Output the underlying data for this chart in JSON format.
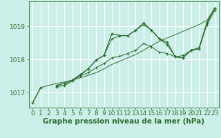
{
  "title": "Graphe pression niveau de la mer (hPa)",
  "bg_color": "#cceee8",
  "grid_color": "#aaddcc",
  "line_color": "#2d6e2d",
  "xlim": [
    -0.5,
    23.5
  ],
  "ylim": [
    1016.55,
    1019.75
  ],
  "yticks": [
    1017,
    1018,
    1019
  ],
  "xticks": [
    0,
    1,
    2,
    3,
    4,
    5,
    6,
    7,
    8,
    9,
    10,
    11,
    12,
    13,
    14,
    15,
    16,
    17,
    18,
    19,
    20,
    21,
    22,
    23
  ],
  "series": {
    "line1_no_marker": [
      1016.7,
      1017.15,
      1017.22,
      1017.28,
      1017.32,
      1017.38,
      1017.45,
      1017.52,
      1017.6,
      1017.72,
      1017.85,
      1017.95,
      1018.05,
      1018.15,
      1018.28,
      1018.42,
      1018.55,
      1018.65,
      1018.75,
      1018.85,
      1018.95,
      1019.05,
      1019.18,
      1019.55
    ],
    "line2_marker": [
      null,
      null,
      null,
      1017.22,
      1017.28,
      1017.38,
      1017.5,
      1017.6,
      1017.75,
      1017.88,
      1018.05,
      1018.1,
      1018.18,
      1018.28,
      1018.48,
      1018.38,
      1018.22,
      1018.18,
      1018.08,
      1018.12,
      1018.28,
      1018.32,
      1019.05,
      1019.48
    ],
    "line3_marker": [
      null,
      null,
      null,
      1017.22,
      1017.28,
      1017.38,
      1017.55,
      1017.72,
      1017.98,
      1018.12,
      1018.62,
      1018.72,
      1018.72,
      1018.88,
      1019.05,
      1018.88,
      1018.62,
      1018.52,
      1018.08,
      1018.05,
      1018.28,
      1018.32,
      1019.12,
      1019.55
    ],
    "line4_marker": [
      1016.7,
      1017.15,
      null,
      1017.18,
      1017.22,
      1017.35,
      1017.52,
      1017.72,
      1017.98,
      1018.12,
      1018.78,
      1018.72,
      1018.72,
      1018.88,
      1019.1,
      1018.88,
      1018.62,
      1018.45,
      1018.08,
      1018.05,
      1018.28,
      1018.35,
      1019.1,
      1019.55
    ]
  },
  "tick_fontsize": 6.5,
  "title_fontsize": 7.5,
  "title_fontweight": "bold"
}
